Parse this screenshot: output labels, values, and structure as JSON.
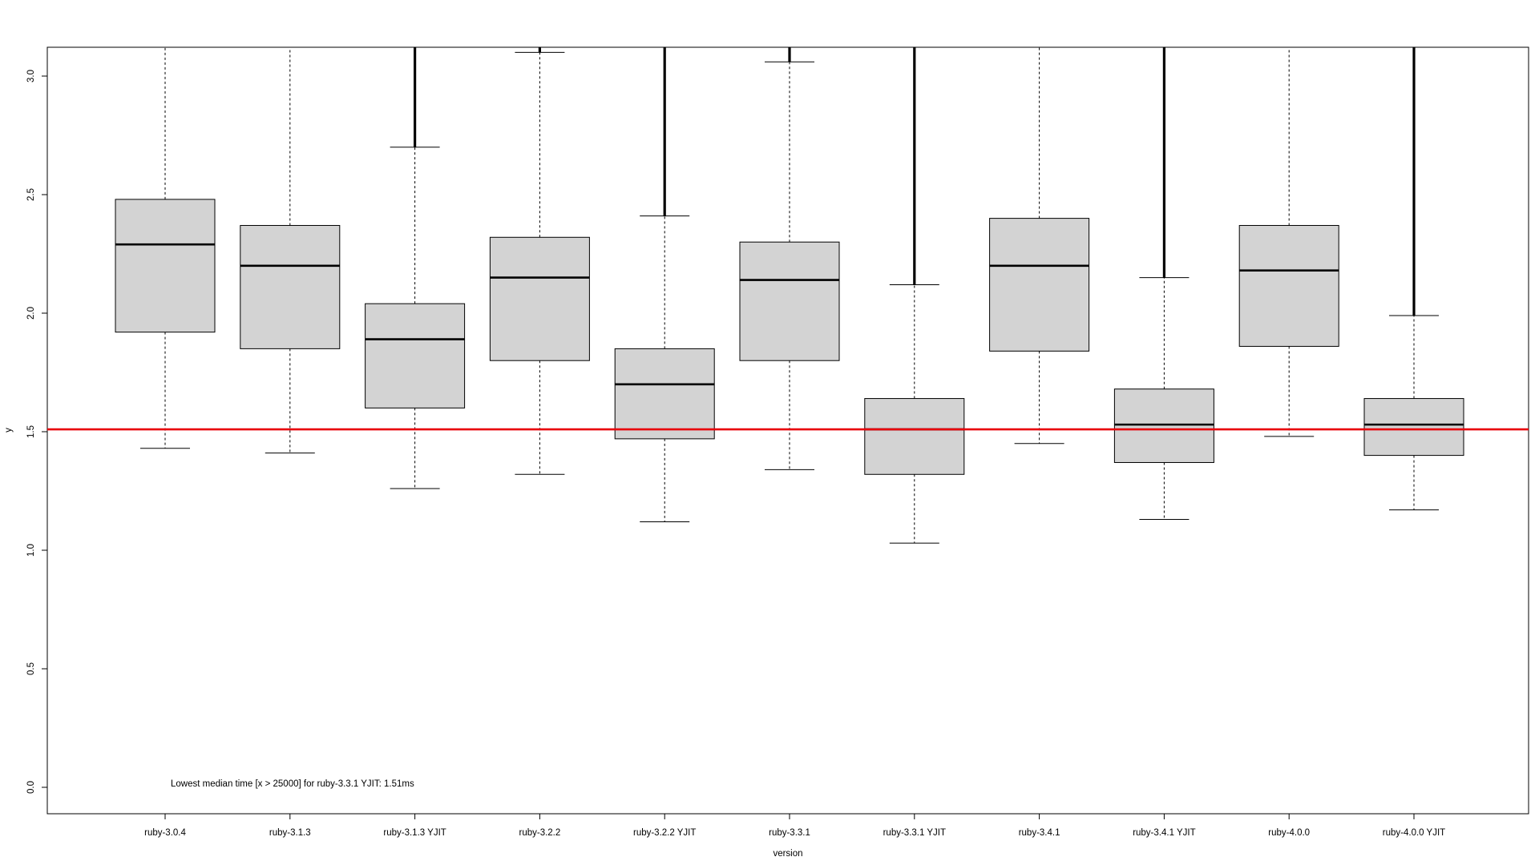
{
  "chart_data": {
    "type": "boxplot",
    "xlabel": "version",
    "ylabel": "y",
    "ylim": [
      0.0,
      3.12
    ],
    "yticks": [
      0.0,
      0.5,
      1.0,
      1.5,
      2.0,
      2.5,
      3.0
    ],
    "ytick_labels": [
      "0.0",
      "0.5",
      "1.0",
      "1.5",
      "2.0",
      "2.5",
      "3.0"
    ],
    "categories": [
      "ruby-3.0.4",
      "ruby-3.1.3",
      "ruby-3.1.3 YJIT",
      "ruby-3.2.2",
      "ruby-3.2.2 YJIT",
      "ruby-3.3.1",
      "ruby-3.3.1 YJIT",
      "ruby-3.4.1",
      "ruby-3.4.1 YJIT",
      "ruby-4.0.0",
      "ruby-4.0.0 YJIT"
    ],
    "boxes": [
      {
        "whisker_low": 1.43,
        "q1": 1.92,
        "median": 2.29,
        "q3": 2.48,
        "whisker_high": 3.12,
        "outliers_from": null
      },
      {
        "whisker_low": 1.41,
        "q1": 1.85,
        "median": 2.2,
        "q3": 2.37,
        "whisker_high": 3.12,
        "outliers_from": null
      },
      {
        "whisker_low": 1.26,
        "q1": 1.6,
        "median": 1.89,
        "q3": 2.04,
        "whisker_high": 2.7,
        "outliers_from": 2.7
      },
      {
        "whisker_low": 1.32,
        "q1": 1.8,
        "median": 2.15,
        "q3": 2.32,
        "whisker_high": 3.1,
        "outliers_from": 3.1
      },
      {
        "whisker_low": 1.12,
        "q1": 1.47,
        "median": 1.7,
        "q3": 1.85,
        "whisker_high": 2.41,
        "outliers_from": 2.41
      },
      {
        "whisker_low": 1.34,
        "q1": 1.8,
        "median": 2.14,
        "q3": 2.3,
        "whisker_high": 3.06,
        "outliers_from": 3.06
      },
      {
        "whisker_low": 1.03,
        "q1": 1.32,
        "median": 1.51,
        "q3": 1.64,
        "whisker_high": 2.12,
        "outliers_from": 2.12
      },
      {
        "whisker_low": 1.45,
        "q1": 1.84,
        "median": 2.2,
        "q3": 2.4,
        "whisker_high": 3.12,
        "outliers_from": null
      },
      {
        "whisker_low": 1.13,
        "q1": 1.37,
        "median": 1.53,
        "q3": 1.68,
        "whisker_high": 2.15,
        "outliers_from": 2.15
      },
      {
        "whisker_low": 1.48,
        "q1": 1.86,
        "median": 2.18,
        "q3": 2.37,
        "whisker_high": 3.12,
        "outliers_from": null
      },
      {
        "whisker_low": 1.17,
        "q1": 1.4,
        "median": 1.53,
        "q3": 1.64,
        "whisker_high": 1.99,
        "outliers_from": 1.99
      }
    ],
    "reference_line": {
      "y": 1.51,
      "color": "#e8000b"
    },
    "annotation": "Lowest median time [x > 25000] for ruby-3.3.1 YJIT: 1.51ms",
    "box_fill": "#d3d3d3",
    "grid": false
  }
}
